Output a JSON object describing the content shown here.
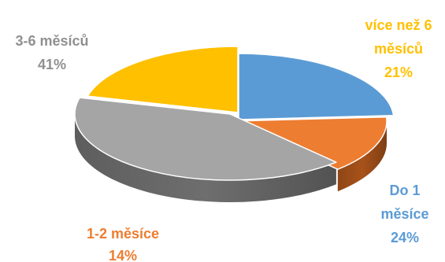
{
  "chart_data": {
    "type": "pie",
    "style": "3d",
    "title": "",
    "slices": [
      {
        "label_lines": [
          "Do 1",
          "měsíce"
        ],
        "value_label": "24%",
        "value": 24,
        "color": "#5B9BD5",
        "side_color": "#2E5C8A"
      },
      {
        "label_lines": [
          "1-2 měsíce"
        ],
        "value_label": "14%",
        "value": 14,
        "color": "#ED7D31",
        "side_color": "#A8521A"
      },
      {
        "label_lines": [
          "3-6 měsíců"
        ],
        "value_label": "41%",
        "value": 41,
        "color": "#A5A5A5",
        "side_color": "#6E6E6E"
      },
      {
        "label_lines": [
          "více než 6",
          "měsíců"
        ],
        "value_label": "21%",
        "value": 21,
        "color": "#FFC000",
        "side_color": "#B88A00"
      }
    ]
  }
}
